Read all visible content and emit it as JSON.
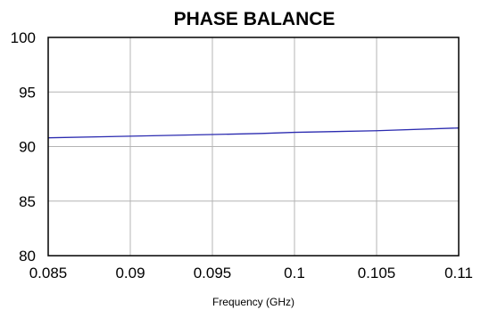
{
  "chart_data": {
    "type": "line",
    "title": "PHASE BALANCE",
    "xlabel": "Frequency (GHz)",
    "ylabel": "",
    "xlim": [
      0.085,
      0.11
    ],
    "ylim": [
      80,
      100
    ],
    "x_ticks": [
      0.085,
      0.09,
      0.095,
      0.1,
      0.105,
      0.11
    ],
    "x_tick_labels": [
      "0.085",
      "0.09",
      "0.095",
      "0.1",
      "0.105",
      "0.11"
    ],
    "y_ticks": [
      80,
      85,
      90,
      95,
      100
    ],
    "y_tick_labels": [
      "80",
      "85",
      "90",
      "95",
      "100"
    ],
    "grid": true,
    "legend": "none",
    "series": [
      {
        "color": "#2b2bb0",
        "x": [
          0.085,
          0.09,
          0.095,
          0.098,
          0.1,
          0.105,
          0.11
        ],
        "y": [
          90.8,
          90.95,
          91.1,
          91.2,
          91.3,
          91.45,
          91.7
        ]
      }
    ]
  }
}
